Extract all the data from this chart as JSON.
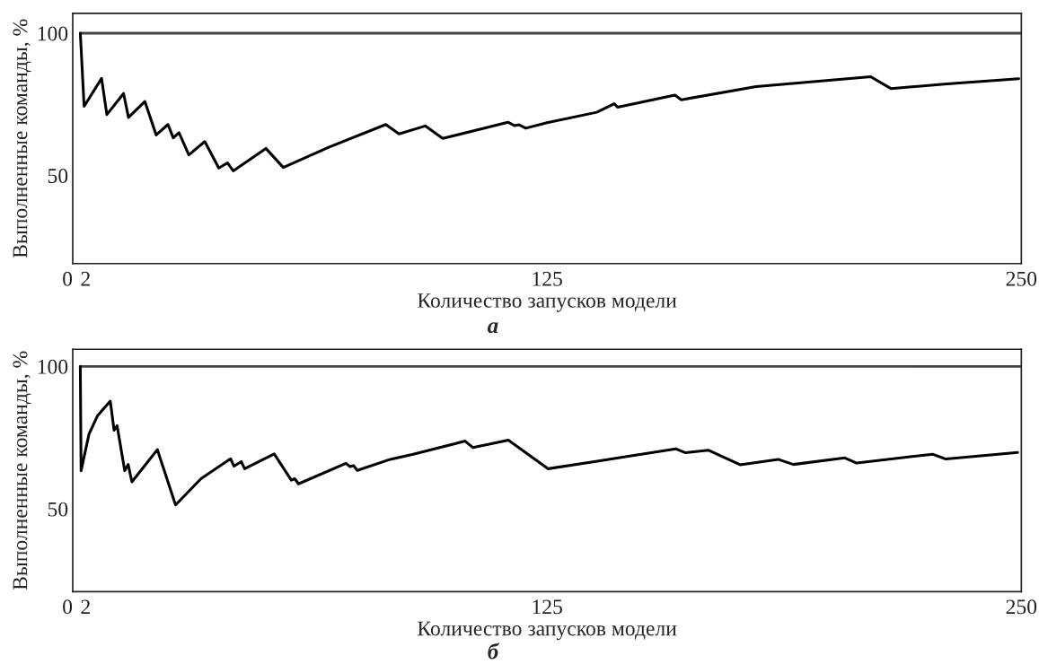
{
  "chart_data": [
    {
      "type": "line",
      "xlabel": "Количество запусков модели",
      "ylabel": "Выполненные команды, %",
      "annotations": [
        "а"
      ],
      "xlim": [
        0,
        250
      ],
      "xticks": [
        0,
        2,
        125,
        250
      ],
      "ylim": [
        19,
        107
      ],
      "yticks": [
        50,
        100
      ],
      "grid": false,
      "legend": false,
      "line_style": "solid",
      "series": [
        {
          "color": "#444444",
          "x": [
            2,
            250
          ],
          "values": [
            100,
            100
          ]
        },
        {
          "color": "#000000",
          "x": [
            2,
            3.0,
            7.6,
            9.0,
            13.4,
            14.7,
            19.0,
            22.0,
            25.1,
            26.5,
            28.0,
            30.6,
            34.8,
            38.5,
            40.8,
            42.3,
            50.9,
            55.5,
            67.6,
            82.5,
            86.0,
            92.9,
            97.5,
            114.7,
            116.4,
            117.6,
            119.4,
            125,
            138.1,
            142.7,
            143.6,
            158.7,
            160.4,
            180.1,
            210.3,
            215.7,
            230.4,
            249.3
          ],
          "values": [
            100,
            74.3,
            84.1,
            71.4,
            78.8,
            70.4,
            76.0,
            64.2,
            67.9,
            63.2,
            65.0,
            57.2,
            61.9,
            52.6,
            54.4,
            51.6,
            59.5,
            52.8,
            60.0,
            67.9,
            64.6,
            67.4,
            63.0,
            68.7,
            67.5,
            67.8,
            66.6,
            68.5,
            72.2,
            75.2,
            74.0,
            78.2,
            76.6,
            81.2,
            84.7,
            80.5,
            82.2,
            84.0
          ]
        }
      ]
    },
    {
      "type": "line",
      "xlabel": "Количество запусков модели",
      "ylabel": "Выполненные команды, %",
      "annotations": [
        "б"
      ],
      "xlim": [
        0,
        250
      ],
      "xticks": [
        0,
        2,
        125,
        250
      ],
      "ylim": [
        21,
        106
      ],
      "yticks": [
        50,
        100
      ],
      "grid": false,
      "legend": false,
      "line_style": "solid",
      "series": [
        {
          "color": "#444444",
          "x": [
            2,
            250
          ],
          "values": [
            100,
            100
          ]
        },
        {
          "color": "#000000",
          "x": [
            2,
            2.2,
            4.3,
            6.5,
            9.9,
            10.9,
            11.7,
            13.7,
            14.6,
            15.6,
            22.3,
            27.1,
            33.8,
            41.6,
            42.5,
            44.4,
            45.3,
            53.1,
            57.6,
            58.5,
            59.5,
            72.0,
            73.1,
            74.0,
            75.0,
            83.7,
            89.5,
            103.4,
            105.5,
            114.8,
            125.3,
            137.1,
            158.9,
            161.5,
            167.5,
            175.9,
            185.9,
            189.9,
            203.5,
            206.6,
            226.6,
            230.1,
            249.0
          ],
          "values": [
            100,
            63.4,
            76.3,
            82.6,
            87.8,
            77.6,
            79.2,
            63.4,
            65.6,
            59.5,
            70.8,
            51.4,
            60.6,
            67.6,
            65.0,
            66.6,
            64.1,
            69.3,
            60.1,
            60.6,
            58.8,
            66.0,
            64.8,
            65.2,
            63.5,
            67.4,
            69.1,
            73.8,
            71.5,
            74.1,
            64.1,
            66.5,
            71.1,
            69.7,
            70.6,
            65.5,
            67.4,
            65.6,
            67.9,
            66.1,
            69.2,
            67.5,
            69.8
          ]
        }
      ]
    }
  ]
}
